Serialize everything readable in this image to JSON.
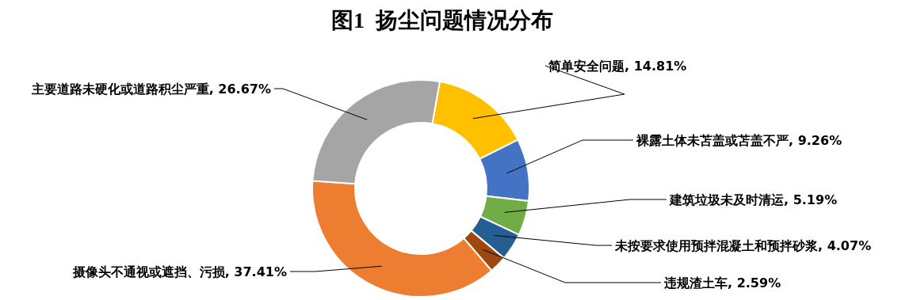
{
  "chart_data": {
    "type": "donut",
    "title": "图1  扬尘问题情况分布",
    "categories": [
      "简单安全问题",
      "裸露土体未苫盖或苫盖不严",
      "建筑垃圾未及时清运",
      "未按要求使用预拌混凝土和预拌砂浆",
      "违规渣土车",
      "摄像头不通视或遮挡、污损",
      "主要道路未硬化或道路积尘严重"
    ],
    "values": [
      14.81,
      9.26,
      5.19,
      4.07,
      2.59,
      37.41,
      26.67
    ],
    "value_labels": [
      "14.81%",
      "9.26%",
      "5.19%",
      "4.07%",
      "2.59%",
      "37.41%",
      "26.67%"
    ],
    "colors": [
      "#ffc000",
      "#4472c4",
      "#70ad47",
      "#255e91",
      "#9e480e",
      "#ed7d31",
      "#a5a5a5"
    ]
  }
}
